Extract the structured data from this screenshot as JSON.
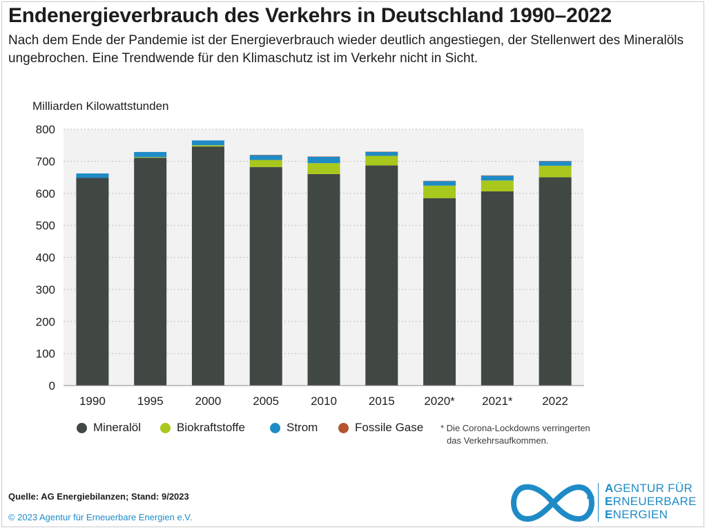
{
  "header": {
    "title": "Endenergieverbrauch des Verkehrs in Deutschland 1990–2022",
    "subtitle": "Nach dem Ende der Pandemie ist der Energieverbrauch wieder deutlich angestiegen, der Stellenwert des Mineralöls ungebrochen. Eine Trendwende für den Klimaschutz ist im Verkehr nicht in Sicht."
  },
  "chart_data": {
    "type": "bar",
    "stacked": true,
    "title": "Endenergieverbrauch des Verkehrs in Deutschland 1990–2022",
    "ylabel": "Milliarden Kilowattstunden",
    "xlabel": "",
    "ylim": [
      0,
      800
    ],
    "yticks": [
      0,
      100,
      200,
      300,
      400,
      500,
      600,
      700,
      800
    ],
    "grid": true,
    "legend_position": "bottom",
    "categories": [
      "1990",
      "1995",
      "2000",
      "2005",
      "2010",
      "2015",
      "2020*",
      "2021*",
      "2022"
    ],
    "series": [
      {
        "name": "Mineralöl",
        "color": "#414844",
        "values": [
          648,
          711,
          746,
          682,
          660,
          687,
          585,
          606,
          650
        ]
      },
      {
        "name": "Biokraftstoffe",
        "color": "#a9c81d",
        "values": [
          0,
          2,
          4,
          22,
          34,
          30,
          39,
          34,
          36
        ]
      },
      {
        "name": "Strom",
        "color": "#1f8bc6",
        "values": [
          14,
          16,
          15,
          15,
          20,
          12,
          14,
          15,
          14
        ]
      },
      {
        "name": "Fossile Gase",
        "color": "#b5552f",
        "values": [
          0,
          0,
          0,
          1,
          1,
          1,
          1,
          1,
          1
        ]
      }
    ]
  },
  "footnote": {
    "line1": "* Die Corona-Lockdowns verringerten",
    "line2": "das Verkehrsaufkommen."
  },
  "footer": {
    "source": "Quelle: AG Energiebilanzen; Stand: 9/2023",
    "copyright": "© 2023 Agentur für Erneuerbare Energien e.V."
  },
  "logo": {
    "line1_initial": "A",
    "line1_rest": "GENTUR FÜR",
    "line2_initial": "E",
    "line2_rest": "RNEUERBARE",
    "line3_initial": "E",
    "line3_rest": "NERGIEN",
    "icon": "infinity-logo-icon",
    "color": "#1f8bc6"
  }
}
